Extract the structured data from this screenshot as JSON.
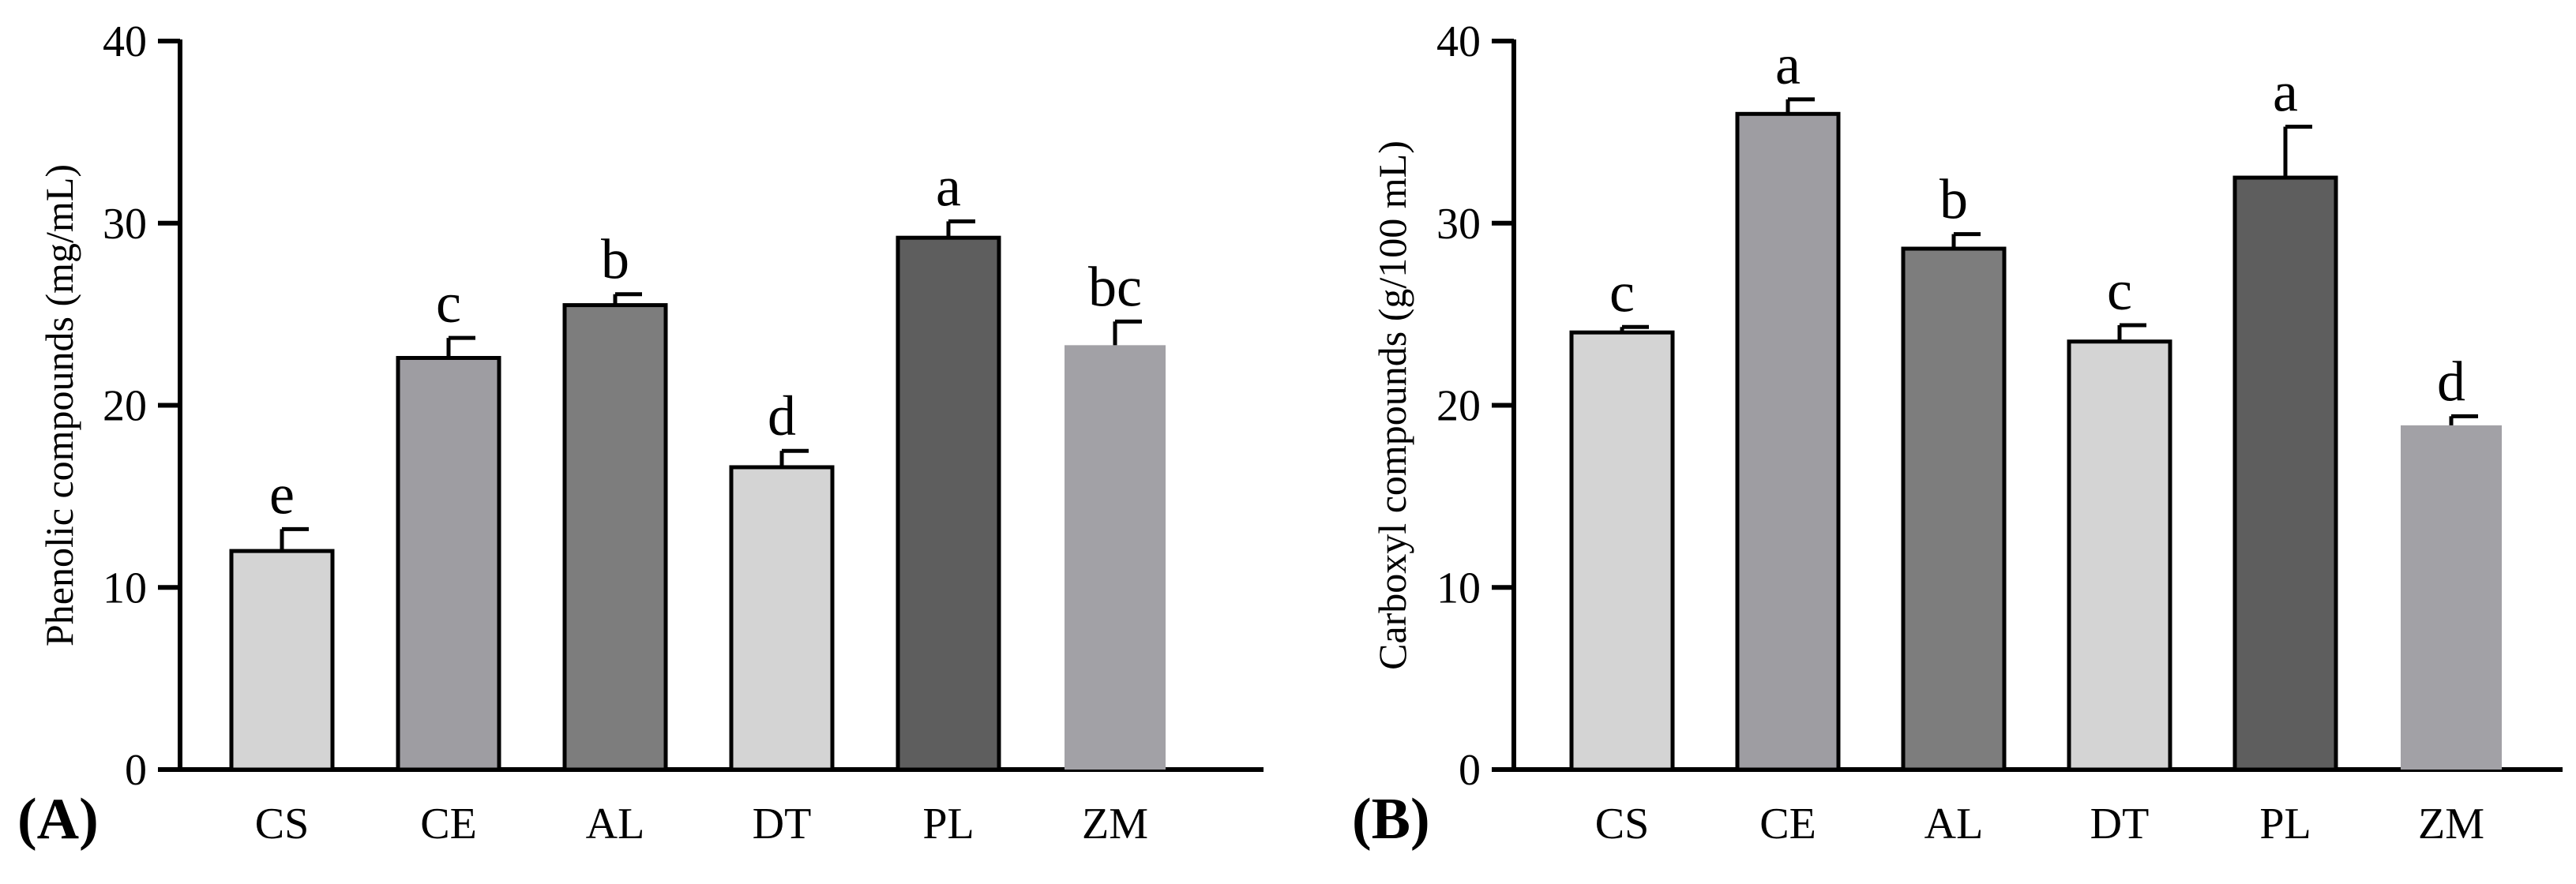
{
  "chart_data": [
    {
      "type": "bar",
      "panel_label": "(A)",
      "title": "",
      "xlabel": "",
      "ylabel": "Phenolic compounds (mg/mL)",
      "ylim": [
        0,
        40
      ],
      "yticks": [
        0,
        10,
        20,
        30,
        40
      ],
      "ytick_labels": [
        "0",
        "10",
        "20",
        "30",
        "40"
      ],
      "grid": false,
      "legend": "none",
      "categories": [
        "CS",
        "CE",
        "AL",
        "DT",
        "PL",
        "ZM"
      ],
      "values": [
        12.0,
        22.6,
        25.5,
        16.6,
        29.2,
        23.3
      ],
      "errors": [
        1.2,
        1.1,
        0.6,
        0.9,
        0.9,
        1.3
      ],
      "significance": [
        "e",
        "c",
        "b",
        "d",
        "a",
        "bc"
      ],
      "colors": [
        "#d4d4d4",
        "#9e9da2",
        "#7d7d7d",
        "#d4d4d4",
        "#5e5e5e",
        "#a2a1a6"
      ],
      "outlined": [
        true,
        true,
        true,
        true,
        true,
        false
      ]
    },
    {
      "type": "bar",
      "panel_label": "(B)",
      "title": "",
      "xlabel": "",
      "ylabel": "Carboxyl compounds (g/100 mL)",
      "ylim": [
        0,
        40
      ],
      "yticks": [
        0,
        10,
        20,
        30,
        40
      ],
      "ytick_labels": [
        "0",
        "10",
        "20",
        "30",
        "40"
      ],
      "grid": false,
      "legend": "none",
      "categories": [
        "CS",
        "CE",
        "AL",
        "DT",
        "PL",
        "ZM"
      ],
      "values": [
        24.0,
        36.0,
        28.6,
        23.5,
        32.5,
        18.9
      ],
      "errors": [
        0.3,
        0.8,
        0.8,
        0.9,
        2.8,
        0.5
      ],
      "significance": [
        "c",
        "a",
        "b",
        "c",
        "a",
        "d"
      ],
      "colors": [
        "#d4d4d4",
        "#9e9da2",
        "#7d7d7d",
        "#d4d4d4",
        "#5e5e5e",
        "#a2a1a6"
      ],
      "outlined": [
        true,
        true,
        true,
        true,
        true,
        false
      ]
    }
  ]
}
